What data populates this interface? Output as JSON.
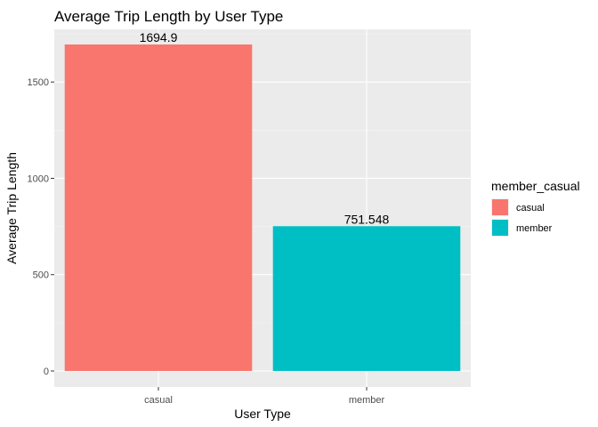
{
  "chart_data": {
    "type": "bar",
    "title": "Average Trip Length by User Type",
    "xlabel": "User Type",
    "ylabel": "Average Trip Length",
    "categories": [
      "casual",
      "member"
    ],
    "values": [
      1694.9,
      751.548
    ],
    "data_labels": [
      "1694.9",
      "751.548"
    ],
    "colors": [
      "#F8766D",
      "#00BFC4"
    ],
    "ylim": [
      0,
      1780
    ],
    "yticks": [
      0,
      500,
      1000,
      1500
    ],
    "ytick_labels": [
      "0",
      "500",
      "1000",
      "1500"
    ],
    "grid": true,
    "panel_background": "#EBEBEB",
    "legend": {
      "title": "member_casual",
      "placement": "right",
      "entries": [
        "casual",
        "member"
      ]
    }
  }
}
